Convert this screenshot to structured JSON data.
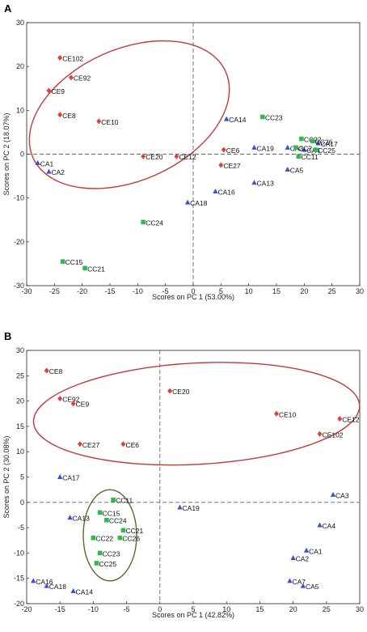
{
  "colors": {
    "CE": "#e0403a",
    "CA": "#3a4fd8",
    "CC": "#33b84a",
    "ellipse_red": "#c0393a",
    "ellipse_olive": "#556b2f"
  },
  "chart_data": [
    {
      "type": "scatter",
      "panel_label": "A",
      "xlabel": "Scores on PC 1 (53.00%)",
      "ylabel": "Scores on PC 2 (18.07%)",
      "xlim": [
        -30,
        30
      ],
      "ylim": [
        -30,
        30
      ],
      "xticks": [
        -30,
        -25,
        -20,
        -15,
        -10,
        -5,
        0,
        5,
        10,
        15,
        20,
        25,
        30
      ],
      "yticks": [
        -30,
        -20,
        -10,
        0,
        10,
        20,
        30
      ],
      "ellipses": [
        {
          "color": "ellipse_red",
          "cx": -11.5,
          "cy": 9,
          "rx": 19,
          "ry": 15,
          "angle_deg": -24
        }
      ],
      "groups": [
        {
          "name": "CE",
          "marker": "diamond",
          "points": [
            {
              "label": "CE102",
              "x": -24,
              "y": 22
            },
            {
              "label": "CE92",
              "x": -22,
              "y": 17.5
            },
            {
              "label": "CE9",
              "x": -26,
              "y": 14.5
            },
            {
              "label": "CE8",
              "x": -24,
              "y": 9
            },
            {
              "label": "CE10",
              "x": -17,
              "y": 7.5
            },
            {
              "label": "CE20",
              "x": -9,
              "y": -0.5
            },
            {
              "label": "CE12",
              "x": -3,
              "y": -0.5
            },
            {
              "label": "CE6",
              "x": 5.5,
              "y": 1
            },
            {
              "label": "CE27",
              "x": 5,
              "y": -2.5
            }
          ]
        },
        {
          "name": "CA",
          "marker": "triangle",
          "points": [
            {
              "label": "CA1",
              "x": -28,
              "y": -2
            },
            {
              "label": "CA2",
              "x": -26,
              "y": -4
            },
            {
              "label": "CA14",
              "x": 6,
              "y": 8
            },
            {
              "label": "CA19",
              "x": 11,
              "y": 1.5
            },
            {
              "label": "CA3",
              "x": 17,
              "y": 1.5
            },
            {
              "label": "CA17",
              "x": 22.5,
              "y": 2.5
            },
            {
              "label": "CA13",
              "x": 11,
              "y": -6.5
            },
            {
              "label": "CA5",
              "x": 17,
              "y": -3.5
            },
            {
              "label": "CA16",
              "x": 4,
              "y": -8.5
            },
            {
              "label": "CA18",
              "x": -1,
              "y": -11
            },
            {
              "label": "CA4",
              "x": 20,
              "y": 1
            }
          ]
        },
        {
          "name": "CC",
          "marker": "square",
          "points": [
            {
              "label": "CC23",
              "x": 12.5,
              "y": 8.5
            },
            {
              "label": "CC22",
              "x": 19.5,
              "y": 3.5
            },
            {
              "label": "CC26",
              "x": 21.5,
              "y": 3
            },
            {
              "label": "CC25",
              "x": 22,
              "y": 1
            },
            {
              "label": "CC2",
              "x": 18.5,
              "y": 1.5
            },
            {
              "label": "CC11",
              "x": 19,
              "y": -0.5
            },
            {
              "label": "CC24",
              "x": -9,
              "y": -15.5
            },
            {
              "label": "CC15",
              "x": -23.5,
              "y": -24.5
            },
            {
              "label": "CC21",
              "x": -19.5,
              "y": -26
            }
          ]
        }
      ]
    },
    {
      "type": "scatter",
      "panel_label": "B",
      "xlabel": "Scores on PC 1 (42.82%)",
      "ylabel": "Scores on PC 2 (30.08%)",
      "xlim": [
        -20,
        30
      ],
      "ylim": [
        -20,
        30
      ],
      "xticks": [
        -20,
        -15,
        -10,
        -5,
        0,
        5,
        10,
        15,
        20,
        25,
        30
      ],
      "yticks": [
        -20,
        -15,
        -10,
        -5,
        0,
        5,
        10,
        15,
        20,
        25,
        30
      ],
      "ellipses": [
        {
          "color": "ellipse_red",
          "cx": 5.5,
          "cy": 17.5,
          "rx": 24.5,
          "ry": 10,
          "angle_deg": -3
        },
        {
          "color": "ellipse_olive",
          "cx": -7.5,
          "cy": -6.5,
          "rx": 4,
          "ry": 9,
          "angle_deg": 0
        }
      ],
      "groups": [
        {
          "name": "CE",
          "marker": "diamond",
          "points": [
            {
              "label": "CE8",
              "x": -17,
              "y": 26
            },
            {
              "label": "CE92",
              "x": -15,
              "y": 20.5
            },
            {
              "label": "CE9",
              "x": -13,
              "y": 19.5
            },
            {
              "label": "CE27",
              "x": -12,
              "y": 11.5
            },
            {
              "label": "CE6",
              "x": -5.5,
              "y": 11.5
            },
            {
              "label": "CE20",
              "x": 1.5,
              "y": 22
            },
            {
              "label": "CE10",
              "x": 17.5,
              "y": 17.5
            },
            {
              "label": "CE12",
              "x": 27,
              "y": 16.5
            },
            {
              "label": "CE102",
              "x": 24,
              "y": 13.5
            }
          ]
        },
        {
          "name": "CA",
          "marker": "triangle",
          "points": [
            {
              "label": "CA17",
              "x": -15,
              "y": 5
            },
            {
              "label": "CA13",
              "x": -13.5,
              "y": -3
            },
            {
              "label": "CA19",
              "x": 3,
              "y": -1
            },
            {
              "label": "CA3",
              "x": 26,
              "y": 1.5
            },
            {
              "label": "CA4",
              "x": 24,
              "y": -4.5
            },
            {
              "label": "CA1",
              "x": 22,
              "y": -9.5
            },
            {
              "label": "CA2",
              "x": 20,
              "y": -11
            },
            {
              "label": "CA7",
              "x": 19.5,
              "y": -15.5
            },
            {
              "label": "CA5",
              "x": 21.5,
              "y": -16.5
            },
            {
              "label": "CA16",
              "x": -19,
              "y": -15.5
            },
            {
              "label": "CA18",
              "x": -17,
              "y": -16.5
            },
            {
              "label": "CA14",
              "x": -13,
              "y": -17.5
            }
          ]
        },
        {
          "name": "CC",
          "marker": "square",
          "points": [
            {
              "label": "CC11",
              "x": -7,
              "y": 0.5
            },
            {
              "label": "CC15",
              "x": -9,
              "y": -2
            },
            {
              "label": "CC24",
              "x": -8,
              "y": -3.5
            },
            {
              "label": "CC21",
              "x": -5.5,
              "y": -5.5
            },
            {
              "label": "CC22",
              "x": -10,
              "y": -7
            },
            {
              "label": "CC26",
              "x": -6,
              "y": -7
            },
            {
              "label": "CC23",
              "x": -9,
              "y": -10
            },
            {
              "label": "CC25",
              "x": -9.5,
              "y": -12
            }
          ]
        }
      ]
    }
  ]
}
